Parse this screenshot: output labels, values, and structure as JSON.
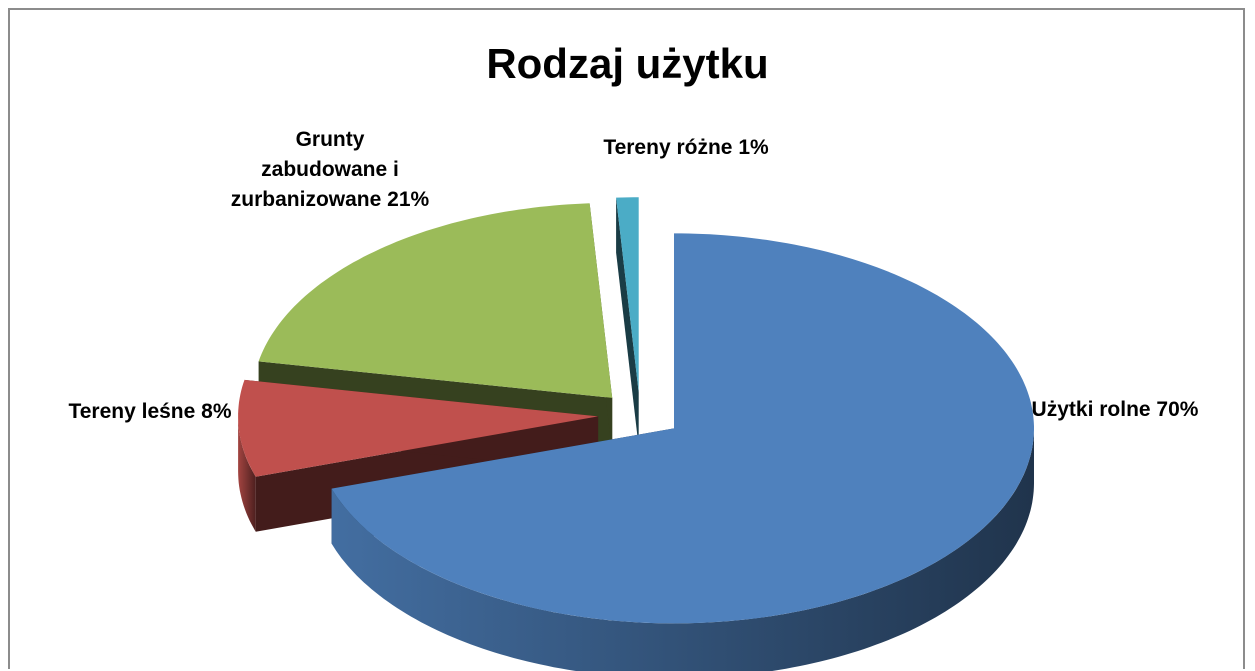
{
  "chart_data": {
    "type": "pie",
    "title": "Rodzaj użytku",
    "categories": [
      "Użytki rolne",
      "Tereny leśne",
      "Grunty zabudowane i zurbanizowane",
      "Tereny różne"
    ],
    "values": [
      70,
      8,
      21,
      1
    ],
    "value_labels": [
      "70%",
      "8%",
      "21%",
      "1%"
    ],
    "colors": [
      "#4f81bd",
      "#c0504d",
      "#9bbb59",
      "#4bacc6"
    ]
  }
}
